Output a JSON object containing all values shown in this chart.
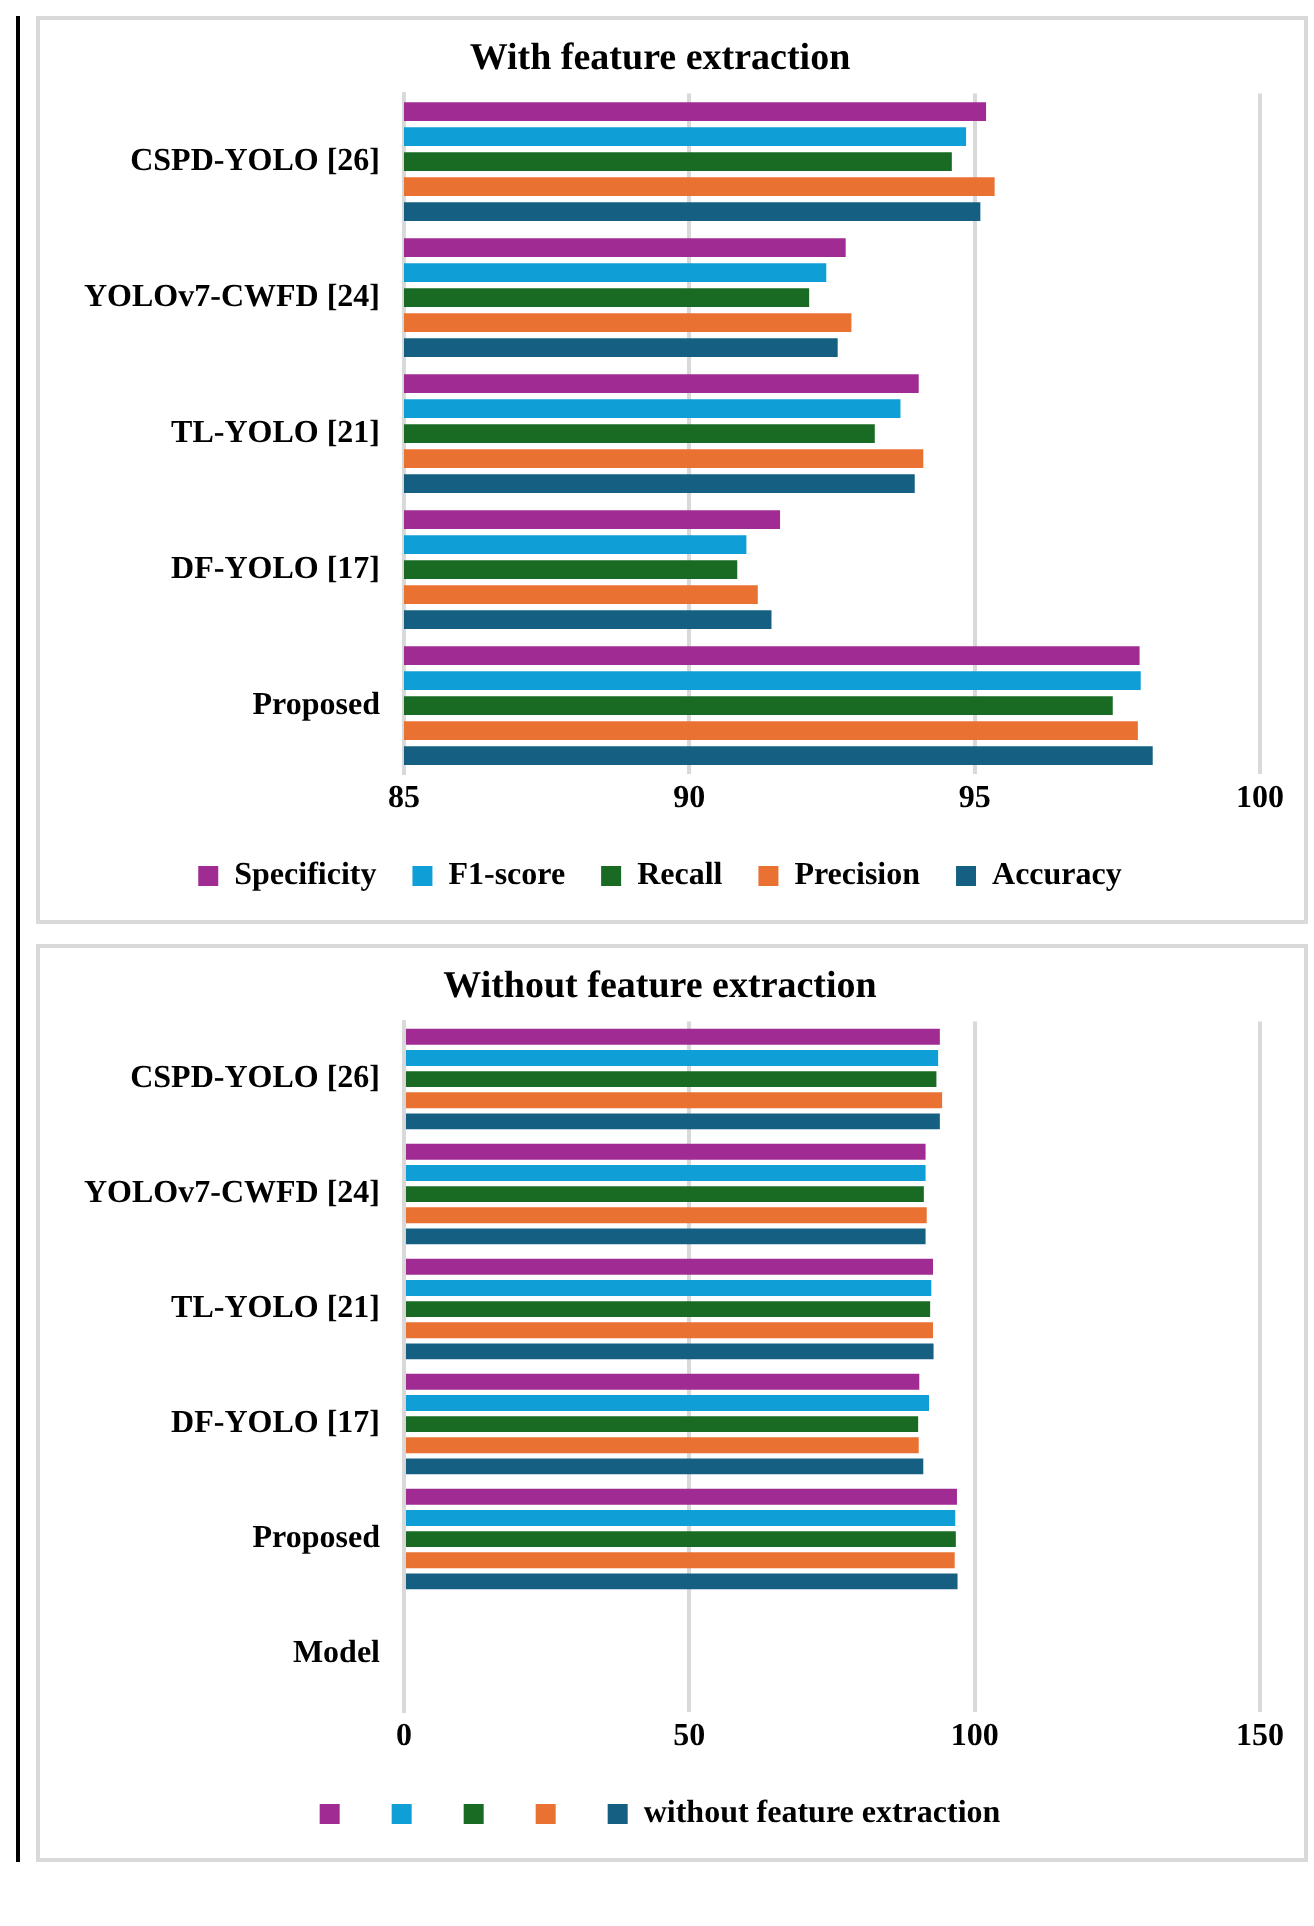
{
  "chart_data": [
    {
      "type": "bar",
      "orientation": "horizontal",
      "title": "With feature extraction",
      "categories": [
        "CSPD-YOLO [26]",
        "YOLOv7-CWFD [24]",
        "TL-YOLO [21]",
        "DF-YOLO [17]",
        "Proposed"
      ],
      "series": [
        {
          "name": "Specificity",
          "color": "#a02b93",
          "values": [
            95.2,
            92.74,
            94.02,
            91.59,
            97.89
          ]
        },
        {
          "name": "F1-score",
          "color": "#0f9ed5",
          "values": [
            94.85,
            92.4,
            93.7,
            91.0,
            97.91
          ]
        },
        {
          "name": "Recall",
          "color": "#196b24",
          "values": [
            94.6,
            92.1,
            93.25,
            90.84,
            97.42
          ]
        },
        {
          "name": "Precision",
          "color": "#e97132",
          "values": [
            95.35,
            92.84,
            94.1,
            91.2,
            97.86
          ]
        },
        {
          "name": "Accuracy",
          "color": "#156082",
          "values": [
            95.1,
            92.6,
            93.95,
            91.44,
            98.12
          ]
        }
      ],
      "xlim": [
        85,
        100
      ],
      "xticks": [
        85,
        90,
        95,
        100
      ],
      "grid": "x",
      "legend": "bottom"
    },
    {
      "type": "bar",
      "orientation": "horizontal",
      "title": "Without feature extraction",
      "categories": [
        "CSPD-YOLO [26]",
        "YOLOv7-CWFD [24]",
        "TL-YOLO [21]",
        "DF-YOLO [17]",
        "Proposed",
        "Model"
      ],
      "series": [
        {
          "color": "#a02b93",
          "values": [
            93.9,
            91.4,
            92.7,
            90.3,
            96.9,
            null
          ]
        },
        {
          "color": "#0f9ed5",
          "values": [
            93.6,
            91.4,
            92.4,
            92.0,
            96.6,
            null
          ]
        },
        {
          "color": "#196b24",
          "values": [
            93.3,
            91.1,
            92.2,
            90.1,
            96.7,
            null
          ]
        },
        {
          "color": "#e97132",
          "values": [
            94.3,
            91.6,
            92.7,
            90.2,
            96.5,
            null
          ]
        },
        {
          "name": "without feature extraction",
          "color": "#156082",
          "values": [
            93.9,
            91.4,
            92.8,
            91.0,
            97.0,
            null
          ]
        }
      ],
      "xlim": [
        0,
        150
      ],
      "xticks": [
        0,
        50,
        100,
        150
      ],
      "grid": "x",
      "legend": "bottom"
    }
  ]
}
